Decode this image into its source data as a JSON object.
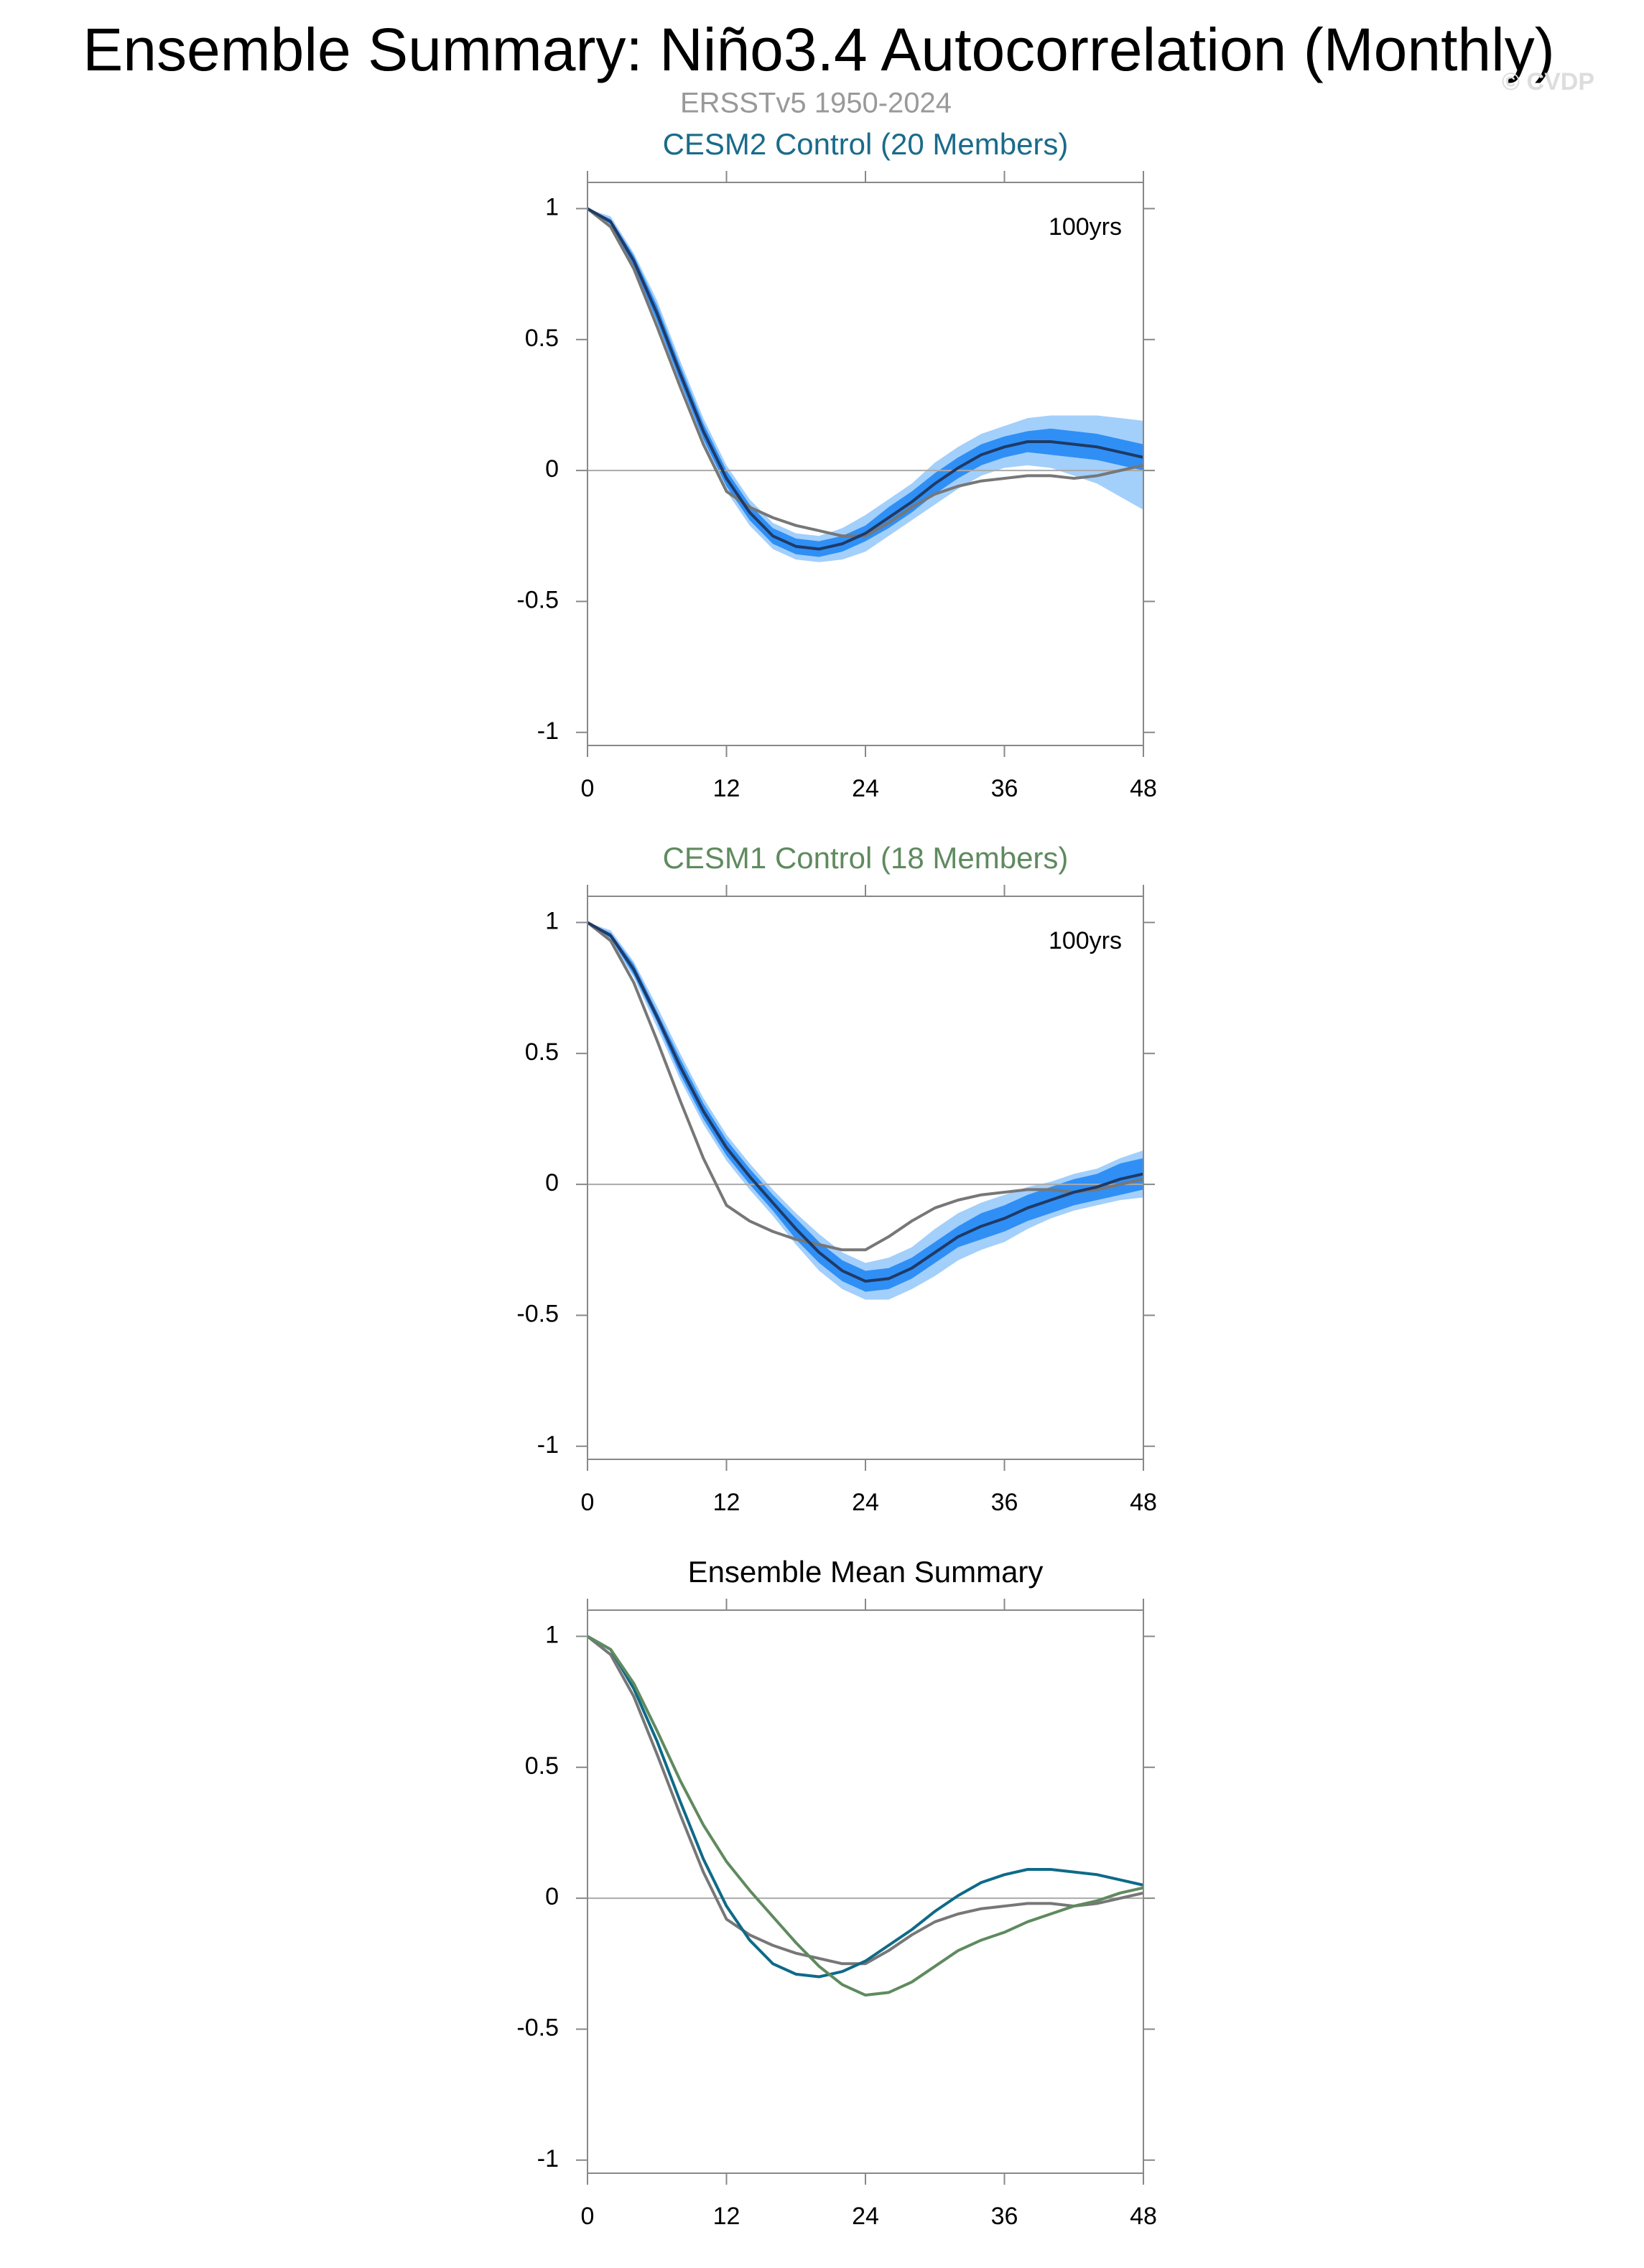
{
  "header": {
    "title": "Ensemble Summary: Niño3.4 Autocorrelation (Monthly)",
    "subtitle": "ERSSTv5 1950-2024",
    "credit": "© CVDP"
  },
  "chart_data": [
    {
      "type": "line",
      "title": "CESM2 Control (20 Members)",
      "title_color": "#1a6b8a",
      "annotation": "100yrs",
      "x": [
        0,
        2,
        4,
        6,
        8,
        10,
        12,
        14,
        16,
        18,
        20,
        22,
        24,
        26,
        28,
        30,
        32,
        34,
        36,
        38,
        40,
        42,
        44,
        46,
        48
      ],
      "xlim": [
        0,
        48
      ],
      "xticks": [
        0,
        12,
        24,
        36,
        48
      ],
      "ylim": [
        -1.05,
        1.1
      ],
      "yticks": [
        -1,
        -0.5,
        0,
        0.5,
        1
      ],
      "zero_line": true,
      "bands": [
        {
          "color": "#a3cffb",
          "lower": [
            1,
            0.93,
            0.77,
            0.55,
            0.32,
            0.1,
            -0.08,
            -0.21,
            -0.3,
            -0.34,
            -0.35,
            -0.34,
            -0.31,
            -0.25,
            -0.19,
            -0.13,
            -0.07,
            -0.02,
            0.01,
            0.02,
            0.01,
            -0.02,
            -0.05,
            -0.1,
            -0.15
          ],
          "upper": [
            1,
            0.97,
            0.83,
            0.65,
            0.42,
            0.2,
            0.02,
            -0.11,
            -0.2,
            -0.24,
            -0.25,
            -0.22,
            -0.17,
            -0.11,
            -0.05,
            0.03,
            0.09,
            0.14,
            0.17,
            0.2,
            0.21,
            0.21,
            0.21,
            0.2,
            0.19
          ]
        },
        {
          "color": "#2f8ff5",
          "lower": [
            1,
            0.94,
            0.78,
            0.57,
            0.34,
            0.12,
            -0.06,
            -0.19,
            -0.28,
            -0.32,
            -0.33,
            -0.31,
            -0.27,
            -0.22,
            -0.16,
            -0.09,
            -0.03,
            0.02,
            0.05,
            0.07,
            0.06,
            0.05,
            0.04,
            0.02,
            0.0
          ],
          "upper": [
            1,
            0.96,
            0.82,
            0.63,
            0.4,
            0.18,
            0.0,
            -0.13,
            -0.22,
            -0.26,
            -0.27,
            -0.25,
            -0.21,
            -0.14,
            -0.08,
            -0.01,
            0.05,
            0.1,
            0.13,
            0.15,
            0.16,
            0.15,
            0.14,
            0.12,
            0.1
          ]
        }
      ],
      "series": [
        {
          "color": "#777777",
          "values": [
            1,
            0.93,
            0.77,
            0.55,
            0.32,
            0.1,
            -0.08,
            -0.14,
            -0.18,
            -0.21,
            -0.23,
            -0.25,
            -0.25,
            -0.2,
            -0.14,
            -0.09,
            -0.06,
            -0.04,
            -0.03,
            -0.02,
            -0.02,
            -0.03,
            -0.02,
            0.0,
            0.02
          ]
        },
        {
          "color": "#1f3a66",
          "values": [
            1,
            0.95,
            0.8,
            0.6,
            0.37,
            0.15,
            -0.03,
            -0.16,
            -0.25,
            -0.29,
            -0.3,
            -0.28,
            -0.24,
            -0.18,
            -0.12,
            -0.05,
            0.01,
            0.06,
            0.09,
            0.11,
            0.11,
            0.1,
            0.09,
            0.07,
            0.05
          ]
        }
      ]
    },
    {
      "type": "line",
      "title": "CESM1 Control (18 Members)",
      "title_color": "#5f8a5f",
      "annotation": "100yrs",
      "x": [
        0,
        2,
        4,
        6,
        8,
        10,
        12,
        14,
        16,
        18,
        20,
        22,
        24,
        26,
        28,
        30,
        32,
        34,
        36,
        38,
        40,
        42,
        44,
        46,
        48
      ],
      "xlim": [
        0,
        48
      ],
      "xticks": [
        0,
        12,
        24,
        36,
        48
      ],
      "ylim": [
        -1.05,
        1.1
      ],
      "yticks": [
        -1,
        -0.5,
        0,
        0.5,
        1
      ],
      "zero_line": true,
      "bands": [
        {
          "color": "#a3cffb",
          "lower": [
            1,
            0.93,
            0.79,
            0.6,
            0.4,
            0.23,
            0.09,
            -0.02,
            -0.12,
            -0.23,
            -0.33,
            -0.4,
            -0.44,
            -0.44,
            -0.4,
            -0.35,
            -0.29,
            -0.25,
            -0.22,
            -0.17,
            -0.13,
            -0.1,
            -0.08,
            -0.06,
            -0.05
          ],
          "upper": [
            1,
            0.97,
            0.85,
            0.68,
            0.5,
            0.33,
            0.19,
            0.08,
            -0.02,
            -0.11,
            -0.19,
            -0.26,
            -0.3,
            -0.28,
            -0.24,
            -0.17,
            -0.11,
            -0.07,
            -0.04,
            -0.01,
            0.01,
            0.04,
            0.06,
            0.1,
            0.13
          ]
        },
        {
          "color": "#2f8ff5",
          "lower": [
            1,
            0.94,
            0.8,
            0.62,
            0.42,
            0.25,
            0.11,
            0.0,
            -0.1,
            -0.21,
            -0.3,
            -0.37,
            -0.41,
            -0.4,
            -0.36,
            -0.3,
            -0.24,
            -0.21,
            -0.18,
            -0.14,
            -0.11,
            -0.08,
            -0.06,
            -0.04,
            -0.02
          ],
          "upper": [
            1,
            0.96,
            0.84,
            0.66,
            0.48,
            0.31,
            0.17,
            0.06,
            -0.04,
            -0.13,
            -0.22,
            -0.29,
            -0.33,
            -0.32,
            -0.28,
            -0.22,
            -0.16,
            -0.11,
            -0.08,
            -0.04,
            -0.01,
            0.02,
            0.04,
            0.08,
            0.1
          ]
        }
      ],
      "series": [
        {
          "color": "#777777",
          "values": [
            1,
            0.93,
            0.77,
            0.55,
            0.32,
            0.1,
            -0.08,
            -0.14,
            -0.18,
            -0.21,
            -0.23,
            -0.25,
            -0.25,
            -0.2,
            -0.14,
            -0.09,
            -0.06,
            -0.04,
            -0.03,
            -0.02,
            -0.02,
            -0.03,
            -0.02,
            0.0,
            0.02
          ]
        },
        {
          "color": "#1f3a66",
          "values": [
            1,
            0.95,
            0.82,
            0.64,
            0.45,
            0.28,
            0.14,
            0.03,
            -0.07,
            -0.17,
            -0.26,
            -0.33,
            -0.37,
            -0.36,
            -0.32,
            -0.26,
            -0.2,
            -0.16,
            -0.13,
            -0.09,
            -0.06,
            -0.03,
            -0.01,
            0.02,
            0.04
          ]
        }
      ]
    },
    {
      "type": "line",
      "title": "Ensemble Mean Summary",
      "title_color": "#000000",
      "x": [
        0,
        2,
        4,
        6,
        8,
        10,
        12,
        14,
        16,
        18,
        20,
        22,
        24,
        26,
        28,
        30,
        32,
        34,
        36,
        38,
        40,
        42,
        44,
        46,
        48
      ],
      "xlim": [
        0,
        48
      ],
      "xticks": [
        0,
        12,
        24,
        36,
        48
      ],
      "ylim": [
        -1.05,
        1.1
      ],
      "yticks": [
        -1,
        -0.5,
        0,
        0.5,
        1
      ],
      "zero_line": true,
      "series": [
        {
          "color": "#777777",
          "values": [
            1,
            0.93,
            0.77,
            0.55,
            0.32,
            0.1,
            -0.08,
            -0.14,
            -0.18,
            -0.21,
            -0.23,
            -0.25,
            -0.25,
            -0.2,
            -0.14,
            -0.09,
            -0.06,
            -0.04,
            -0.03,
            -0.02,
            -0.02,
            -0.03,
            -0.02,
            0.0,
            0.02
          ]
        },
        {
          "color": "#0e6a87",
          "values": [
            1,
            0.95,
            0.8,
            0.6,
            0.37,
            0.15,
            -0.03,
            -0.16,
            -0.25,
            -0.29,
            -0.3,
            -0.28,
            -0.24,
            -0.18,
            -0.12,
            -0.05,
            0.01,
            0.06,
            0.09,
            0.11,
            0.11,
            0.1,
            0.09,
            0.07,
            0.05
          ]
        },
        {
          "color": "#5f8a5f",
          "values": [
            1,
            0.95,
            0.82,
            0.64,
            0.45,
            0.28,
            0.14,
            0.03,
            -0.07,
            -0.17,
            -0.26,
            -0.33,
            -0.37,
            -0.36,
            -0.32,
            -0.26,
            -0.2,
            -0.16,
            -0.13,
            -0.09,
            -0.06,
            -0.03,
            -0.01,
            0.02,
            0.04
          ]
        }
      ]
    }
  ]
}
